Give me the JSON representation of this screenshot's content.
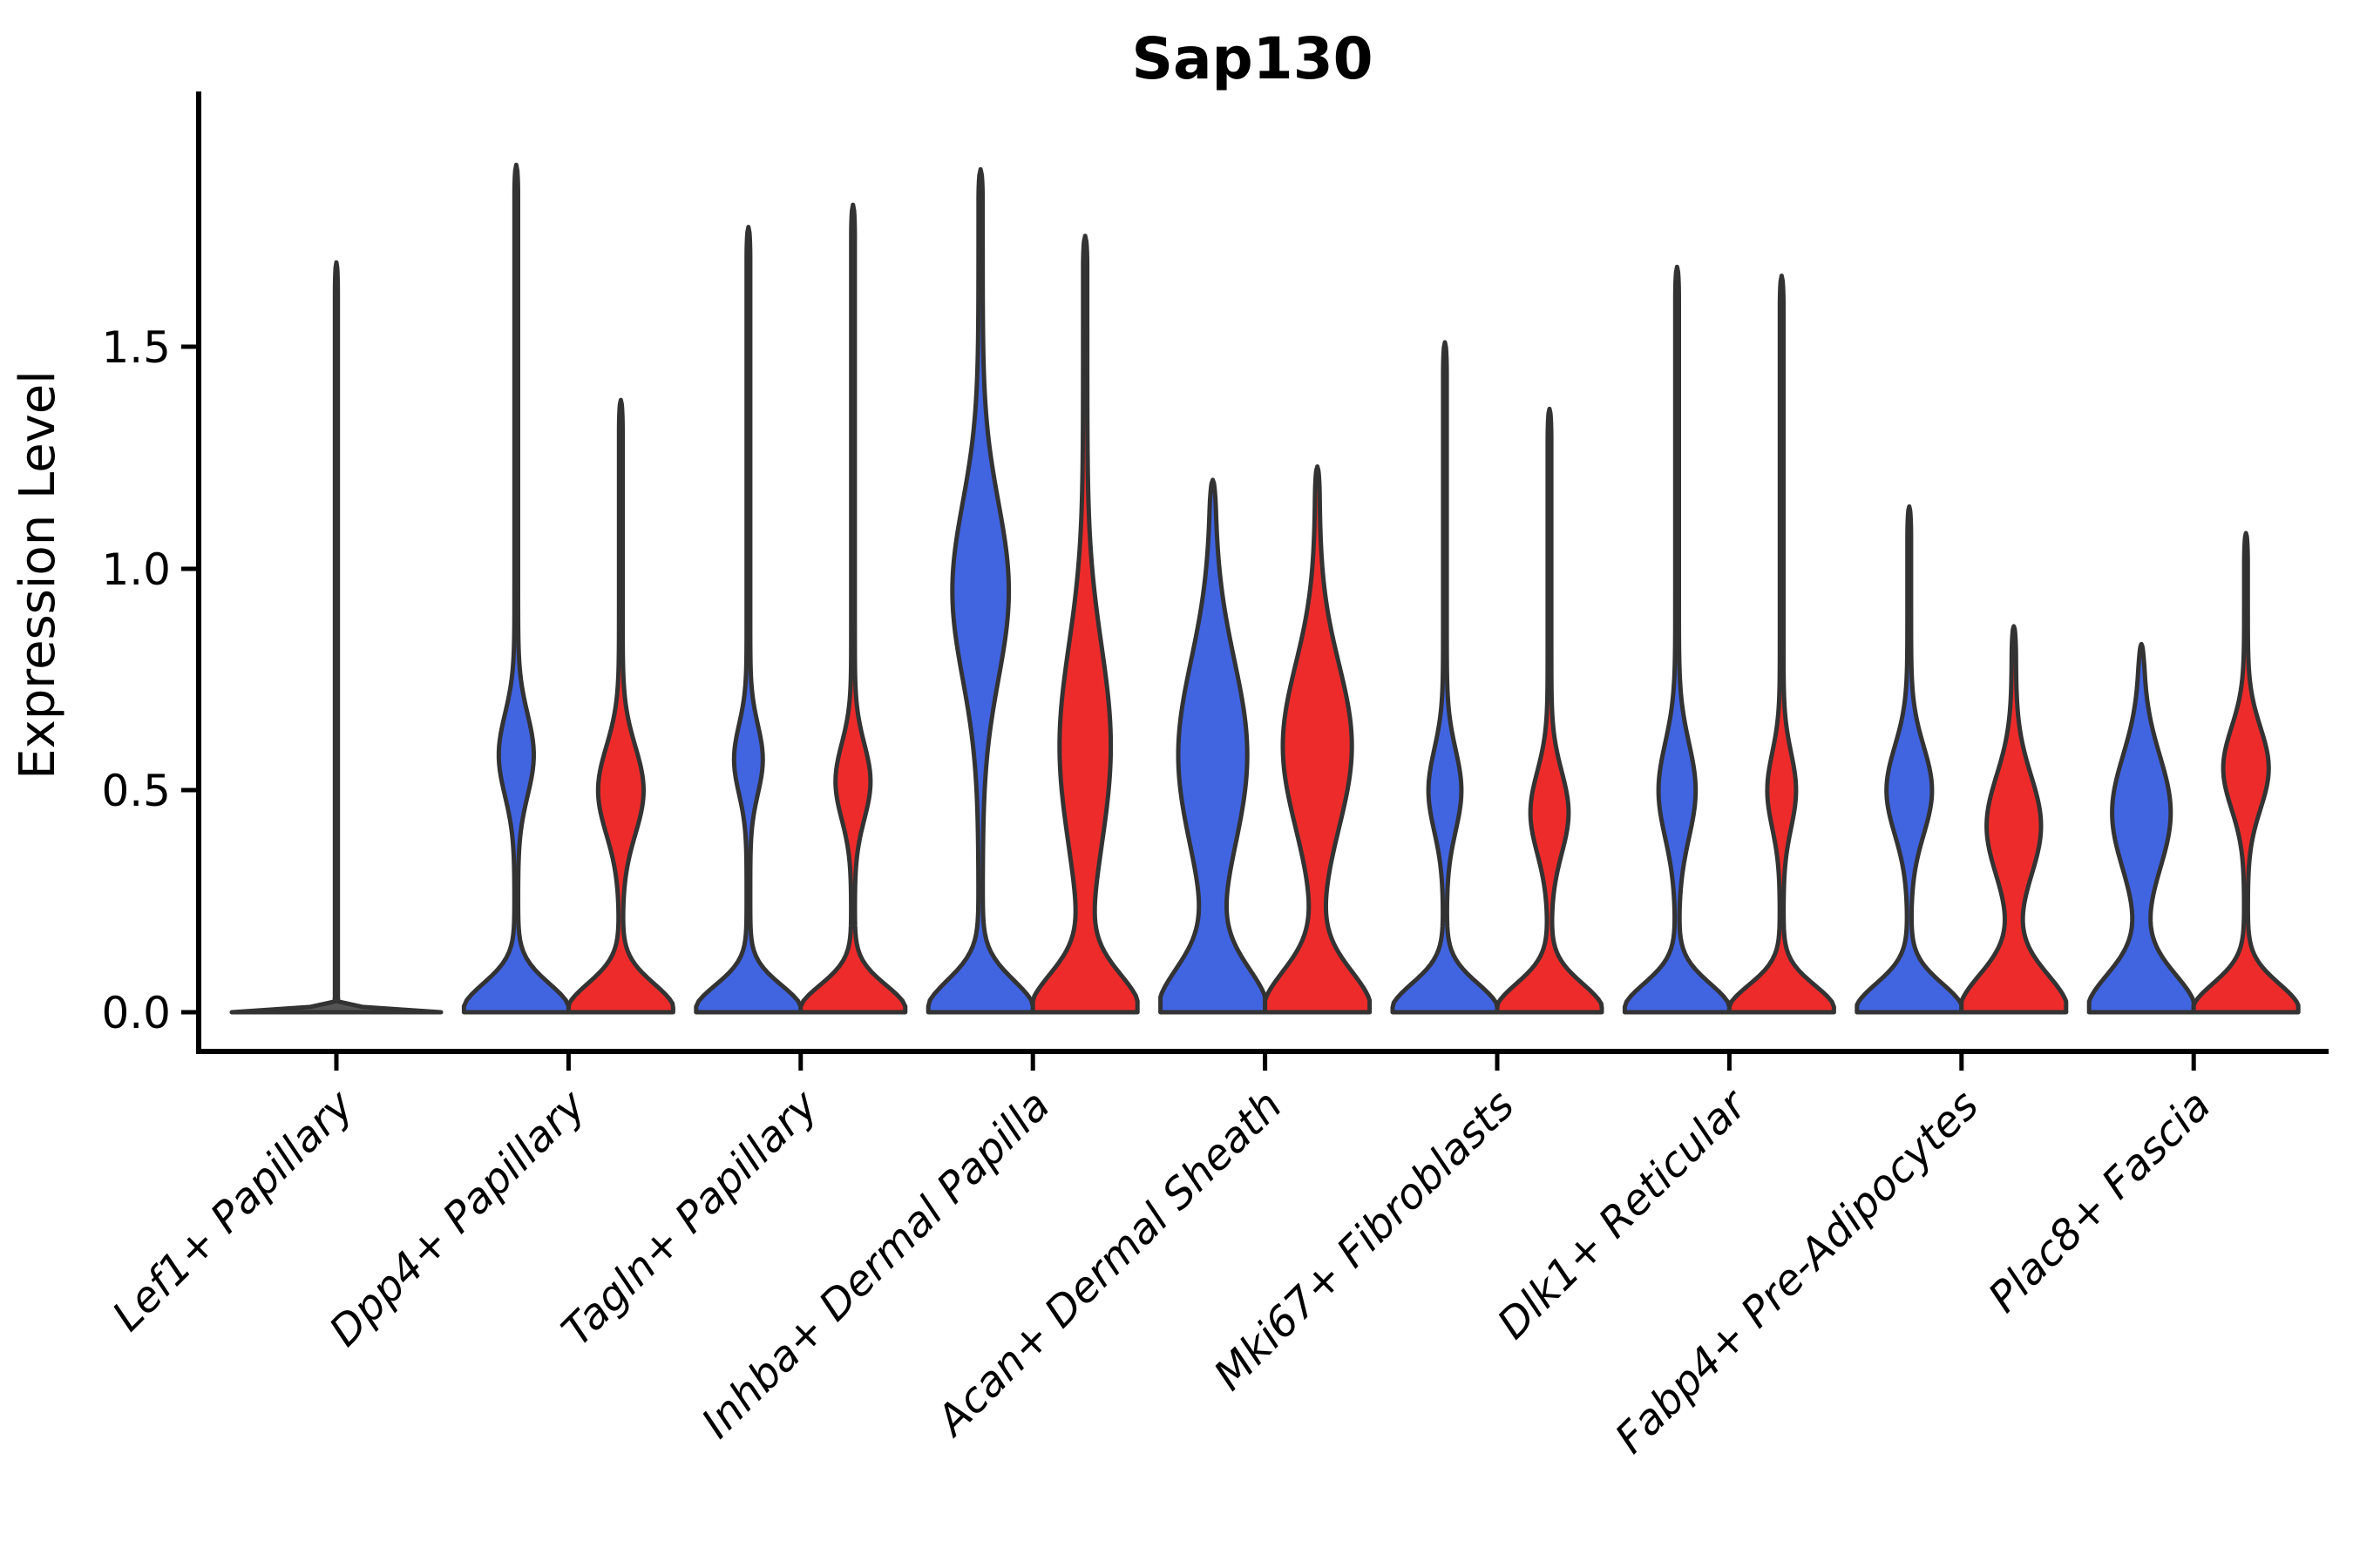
{
  "title": "Sap130",
  "y_axis": {
    "label": "Expression Level",
    "tick_labels": [
      "0.0",
      "0.5",
      "1.0",
      "1.5"
    ]
  },
  "chart_data": {
    "type": "violin",
    "title": "Sap130",
    "xlabel": "",
    "ylabel": "Expression Level",
    "ylim": [
      -0.09,
      2.08
    ],
    "yticks": [
      0.0,
      0.5,
      1.0,
      1.5
    ],
    "grid": false,
    "legend": "none",
    "categories": [
      "Lef1+ Papillary",
      "Dpp4+ Papillary",
      "Tagln+ Papillary",
      "Inhba+ Dermal Papilla",
      "Acan+ Dermal Sheath",
      "Mki67+ Fibroblasts",
      "Dlk1+ Reticular",
      "Fabp4+ Pre-Adipocytes",
      "Plac8+ Fascia"
    ],
    "series": [
      {
        "name": "group-blue",
        "color": "#4164E1"
      },
      {
        "name": "group-red",
        "color": "#EE2B2B"
      }
    ],
    "outline_color": "#333333",
    "note": "Each violin summarized as: max expression (spike top), dominant zero-expression mass (zero_decay = how fast width falls off above 0), and a secondary mid-expression mode (center/sigma in expression units, amp as fraction of max violin half-width).",
    "violins": [
      {
        "category_index": 0,
        "series": "single",
        "color": "#555555",
        "max": 1.69,
        "zero_decay": 0.01,
        "mode_center": 0.0,
        "mode_sigma": 0.0,
        "mode_amp": 0.0,
        "tail": 0.014
      },
      {
        "category_index": 1,
        "series": "group-blue",
        "color": "#4164E1",
        "max": 1.91,
        "zero_decay": 0.09,
        "mode_center": 0.58,
        "mode_sigma": 0.13,
        "mode_amp": 0.3,
        "tail": 0.035
      },
      {
        "category_index": 1,
        "series": "group-red",
        "color": "#EE2B2B",
        "max": 1.38,
        "zero_decay": 0.09,
        "mode_center": 0.5,
        "mode_sigma": 0.14,
        "mode_amp": 0.4,
        "tail": 0.035
      },
      {
        "category_index": 2,
        "series": "group-blue",
        "color": "#4164E1",
        "max": 1.77,
        "zero_decay": 0.085,
        "mode_center": 0.57,
        "mode_sigma": 0.11,
        "mode_amp": 0.24,
        "tail": 0.035
      },
      {
        "category_index": 2,
        "series": "group-red",
        "color": "#EE2B2B",
        "max": 1.82,
        "zero_decay": 0.085,
        "mode_center": 0.52,
        "mode_sigma": 0.12,
        "mode_amp": 0.3,
        "tail": 0.035
      },
      {
        "category_index": 3,
        "series": "group-blue",
        "color": "#4164E1",
        "max": 1.9,
        "zero_decay": 0.1,
        "mode_center": 0.95,
        "mode_sigma": 0.28,
        "mode_amp": 0.5,
        "tail": 0.04
      },
      {
        "category_index": 3,
        "series": "group-red",
        "color": "#EE2B2B",
        "max": 1.75,
        "zero_decay": 0.12,
        "mode_center": 0.6,
        "mode_sigma": 0.32,
        "mode_amp": 0.45,
        "tail": 0.04
      },
      {
        "category_index": 4,
        "series": "group-blue",
        "color": "#4164E1",
        "max": 1.2,
        "zero_decay": 0.14,
        "mode_center": 0.58,
        "mode_sigma": 0.3,
        "mode_amp": 0.62,
        "tail": 0.04
      },
      {
        "category_index": 4,
        "series": "group-red",
        "color": "#EE2B2B",
        "max": 1.23,
        "zero_decay": 0.13,
        "mode_center": 0.6,
        "mode_sigma": 0.26,
        "mode_amp": 0.62,
        "tail": 0.04
      },
      {
        "category_index": 5,
        "series": "group-blue",
        "color": "#4164E1",
        "max": 1.51,
        "zero_decay": 0.09,
        "mode_center": 0.5,
        "mode_sigma": 0.13,
        "mode_amp": 0.28,
        "tail": 0.035
      },
      {
        "category_index": 5,
        "series": "group-red",
        "color": "#EE2B2B",
        "max": 1.36,
        "zero_decay": 0.09,
        "mode_center": 0.45,
        "mode_sigma": 0.13,
        "mode_amp": 0.33,
        "tail": 0.035
      },
      {
        "category_index": 6,
        "series": "group-blue",
        "color": "#4164E1",
        "max": 1.68,
        "zero_decay": 0.09,
        "mode_center": 0.5,
        "mode_sigma": 0.15,
        "mode_amp": 0.32,
        "tail": 0.035
      },
      {
        "category_index": 6,
        "series": "group-red",
        "color": "#EE2B2B",
        "max": 1.66,
        "zero_decay": 0.085,
        "mode_center": 0.5,
        "mode_sigma": 0.12,
        "mode_amp": 0.24,
        "tail": 0.035
      },
      {
        "category_index": 7,
        "series": "group-blue",
        "color": "#4164E1",
        "max": 1.14,
        "zero_decay": 0.09,
        "mode_center": 0.5,
        "mode_sigma": 0.14,
        "mode_amp": 0.4,
        "tail": 0.035
      },
      {
        "category_index": 7,
        "series": "group-red",
        "color": "#EE2B2B",
        "max": 0.87,
        "zero_decay": 0.12,
        "mode_center": 0.42,
        "mode_sigma": 0.16,
        "mode_amp": 0.48,
        "tail": 0.04
      },
      {
        "category_index": 8,
        "series": "group-blue",
        "color": "#4164E1",
        "max": 0.83,
        "zero_decay": 0.12,
        "mode_center": 0.45,
        "mode_sigma": 0.18,
        "mode_amp": 0.52,
        "tail": 0.04
      },
      {
        "category_index": 8,
        "series": "group-red",
        "color": "#EE2B2B",
        "max": 1.08,
        "zero_decay": 0.09,
        "mode_center": 0.55,
        "mode_sigma": 0.13,
        "mode_amp": 0.4,
        "tail": 0.035
      }
    ]
  }
}
